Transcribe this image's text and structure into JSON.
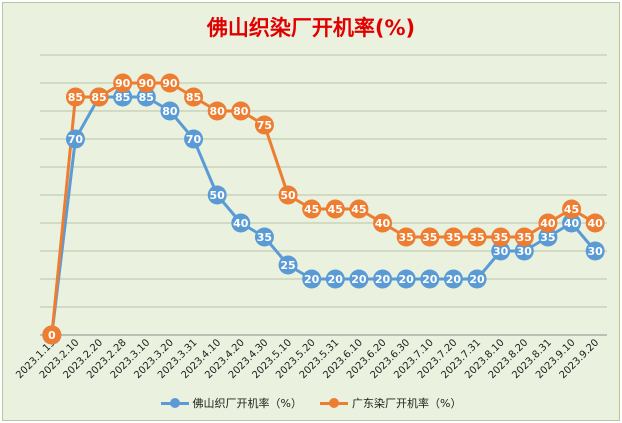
{
  "chart_data": {
    "type": "line",
    "title": "佛山织染厂开机率(%)",
    "categories": [
      "2023.1.15",
      "2023.2.10",
      "2023.2.20",
      "2023.2.28",
      "2023.3.10",
      "2023.3.20",
      "2023.3.31",
      "2023.4.10",
      "2023.4.20",
      "2023.4.30",
      "2023.5.10",
      "2023.5.20",
      "2023.5.31",
      "2023.6.10",
      "2023.6.20",
      "2023.6.30",
      "2023.7.10",
      "2023.7.20",
      "2023.7.31",
      "2023.8.10",
      "2023.8.20",
      "2023.8.31",
      "2023.9.10",
      "2023.9.20"
    ],
    "series": [
      {
        "name": "佛山织厂开机率（%）",
        "color": "#5b9bd5",
        "values": [
          0,
          70,
          85,
          85,
          85,
          80,
          70,
          50,
          40,
          35,
          25,
          20,
          20,
          20,
          20,
          20,
          20,
          20,
          20,
          30,
          30,
          35,
          40,
          30
        ]
      },
      {
        "name": "广东染厂开机率（%）",
        "color": "#ed7d31",
        "values": [
          0,
          85,
          85,
          90,
          90,
          90,
          85,
          80,
          80,
          75,
          50,
          45,
          45,
          45,
          40,
          35,
          35,
          35,
          35,
          35,
          35,
          40,
          45,
          40
        ]
      }
    ],
    "ylim": [
      0,
      100
    ],
    "grid": true,
    "legend_position": "bottom"
  }
}
